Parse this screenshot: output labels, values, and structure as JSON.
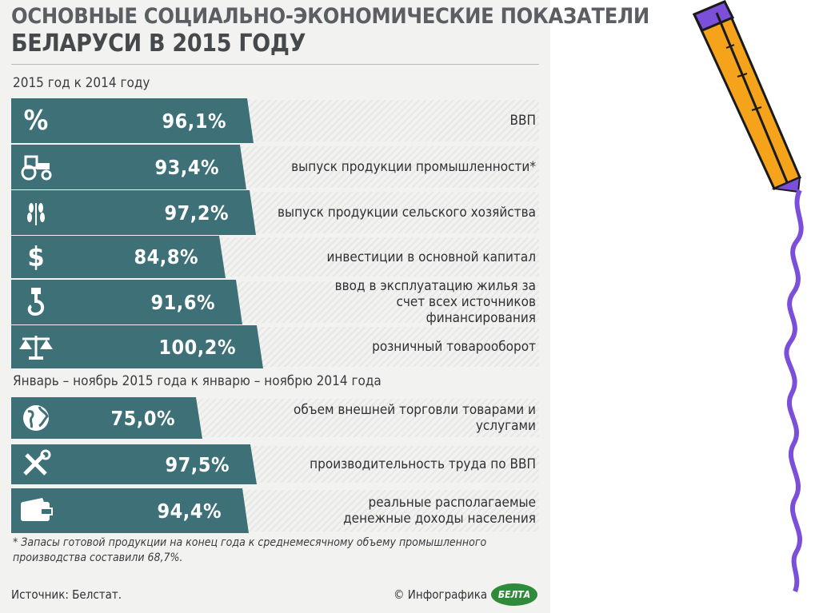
{
  "title": {
    "line1": "ОСНОВНЫЕ СОЦИАЛЬНО-ЭКОНОМИЧЕСКИЕ ПОКАЗАТЕЛИ",
    "line2": "БЕЛАРУСИ В 2015 ГОДУ"
  },
  "chart_data": {
    "type": "bar",
    "title": "ОСНОВНЫЕ СОЦИАЛЬНО-ЭКОНОМИЧЕСКИЕ ПОКАЗАТЕЛИ БЕЛАРУСИ В 2015 ГОДУ",
    "sections": [
      {
        "heading": "2015 год к 2014 году",
        "items": [
          {
            "icon": "percent-icon",
            "value": 96.1,
            "display": "96,1%",
            "label": "ВВП"
          },
          {
            "icon": "tractor-icon",
            "value": 93.4,
            "display": "93,4%",
            "label": "выпуск продукции промышленности*"
          },
          {
            "icon": "wheat-icon",
            "value": 97.2,
            "display": "97,2%",
            "label": "выпуск продукции сельского хозяйства"
          },
          {
            "icon": "dollar-icon",
            "value": 84.8,
            "display": "84,8%",
            "label": "инвестиции в основной капитал"
          },
          {
            "icon": "crane-hook-icon",
            "value": 91.6,
            "display": "91,6%",
            "label": "ввод в эксплуатацию жилья за счет всех источников финансирования"
          },
          {
            "icon": "scales-icon",
            "value": 100.2,
            "display": "100,2%",
            "label": "розничный товарооборот"
          }
        ]
      },
      {
        "heading": "Январь – ноябрь 2015 года к январю – ноябрю 2014 года",
        "items": [
          {
            "icon": "globe-icon",
            "value": 75.0,
            "display": "75,0%",
            "label": "объем внешней торговли товарами и услугами"
          },
          {
            "icon": "tools-icon",
            "value": 97.5,
            "display": "97,5%",
            "label": "производительность труда по ВВП"
          },
          {
            "icon": "wallet-icon",
            "value": 94.4,
            "display": "94,4%",
            "label": "реальные располагаемые денежные доходы населения"
          }
        ]
      }
    ]
  },
  "footnote": "* Запасы готовой продукции на конец года к среднемесячному объему промышленного производства составили 68,7%.",
  "source": "Источник: Белстат.",
  "copyright": "© Инфографика",
  "logo_text": "БЕЛТА",
  "colors": {
    "bar": "#3d7077",
    "background": "#f2f2f1",
    "title": "#5b5f63",
    "pencil_body": "#f5a31a",
    "pencil_outline": "#7b4fd9"
  }
}
